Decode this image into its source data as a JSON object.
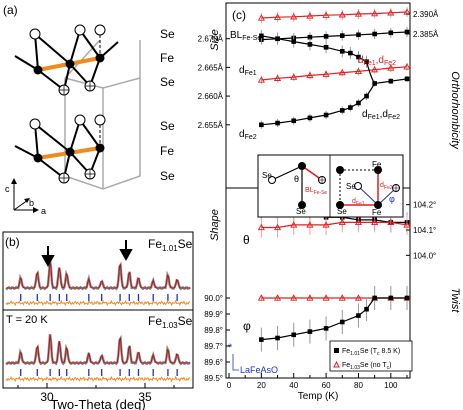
{
  "panel_a": {
    "label": "(a)",
    "layers": [
      "Se",
      "Fe",
      "Se",
      "Se",
      "Fe",
      "Se"
    ],
    "axes": [
      "c",
      "b",
      "a"
    ]
  },
  "panel_b": {
    "label": "(b)",
    "sample_top": "Fe",
    "sample_top_sub": "1.01",
    "sample_top_tail": "Se",
    "sample_bottom": "Fe",
    "sample_bottom_sub": "1.03",
    "sample_bottom_tail": "Se",
    "temperature": "T = 20 K",
    "ticks": [
      "30",
      "35"
    ],
    "xlabel": "Two-Theta (deg)"
  },
  "panel_c": {
    "label": "(c)",
    "size_label": "Size",
    "orthorhombicity_label": "Orthorhombicity",
    "shape_label": "Shape",
    "twist_label": "Twist",
    "xlabel": "Temp (K)",
    "x_ticks": [
      "0",
      "10",
      "20",
      "30",
      "40",
      "50",
      "60",
      "70",
      "80",
      "90",
      "100",
      "110"
    ],
    "size_left_ticks": [
      "2.655Å",
      "2.660Å",
      "2.665Å",
      "2.670Å"
    ],
    "size_right_ticks": [
      "2.385Å",
      "2.390Å"
    ],
    "shape_right_ticks": [
      "104.0°",
      "104.1°",
      "104.2°"
    ],
    "twist_left_ticks": [
      "89.5°",
      "89.6°",
      "89.7°",
      "89.8°",
      "89.9°",
      "90.0°"
    ],
    "labels": {
      "bl": "BL",
      "bl_sub": "Fe-Se",
      "dfe1": "d",
      "dfe1_sub": "Fe1",
      "dfe2": "d",
      "dfe2_sub": "Fe2",
      "dfe_avg_a": "d",
      "dfe_avg_a_sub": "Fe1",
      "dfe_avg_mid": ",d",
      "dfe_avg_b_sub": "Fe2",
      "dfe_red_a": "d",
      "dfe_red_a_sub": "Fe1",
      "dfe_red_mid": ",d",
      "dfe_red_b_sub": "Fe2",
      "theta": "θ",
      "phi": "φ",
      "lafeaso": "LaFeAsO"
    },
    "inset": {
      "se": "Se",
      "fe": "Fe",
      "theta": "θ",
      "bl": "BL",
      "bl_sub": "Fe-Se",
      "dfe2": "d",
      "dfe2_sub": "Fe2",
      "dfe1": "d",
      "dfe1_sub": "Fe1",
      "phi": "φ"
    },
    "legend": [
      {
        "pre": "Fe",
        "sub": "1.01",
        "post": "Se (T",
        "sub2": "c",
        "post2": " 8.5 K)"
      },
      {
        "pre": "Fe",
        "sub": "1.03",
        "post": "Se (no T",
        "sub2": "c",
        "post2": ")"
      }
    ],
    "colors": {
      "black_series": "#000000",
      "red_series": "#e02020",
      "lafeaso": "#2030c0"
    }
  },
  "chart_data": [
    {
      "type": "scatter",
      "title": "Size",
      "xlabel": "Temp (K)",
      "ylabel": "Size",
      "xlim": [
        0,
        110
      ],
      "ylim": [
        2.652,
        2.675
      ],
      "series": [
        {
          "name": "BL Fe-Se",
          "x": [
            20,
            30,
            40,
            50,
            60,
            70,
            80,
            90,
            100,
            110
          ],
          "y": [
            2.3836,
            2.3838,
            2.384,
            2.3842,
            2.3844,
            2.3846,
            2.3848,
            2.385,
            2.3853,
            2.3855
          ]
        },
        {
          "name": "d Fe1",
          "x": [
            20,
            30,
            40,
            50,
            60,
            70,
            75,
            80,
            85
          ],
          "y": [
            2.6705,
            2.67,
            2.6695,
            2.669,
            2.6685,
            2.6678,
            2.6675,
            2.6668,
            2.666
          ]
        },
        {
          "name": "d Fe2",
          "x": [
            20,
            30,
            40,
            50,
            60,
            70,
            75,
            80,
            85
          ],
          "y": [
            2.655,
            2.6553,
            2.6557,
            2.6562,
            2.6567,
            2.6575,
            2.658,
            2.6588,
            2.66
          ]
        },
        {
          "name": "d Fe1, d Fe2",
          "x": [
            90,
            100,
            110
          ],
          "y": [
            2.6622,
            2.6626,
            2.663
          ]
        },
        {
          "name": "d Fe1, d Fe2 (red)",
          "x": [
            20,
            30,
            40,
            50,
            60,
            70,
            80,
            90,
            100,
            110
          ],
          "y": [
            2.6628,
            2.6631,
            2.6633,
            2.6636,
            2.6638,
            2.6641,
            2.6643,
            2.6646,
            2.6649,
            2.6651
          ]
        }
      ]
    },
    {
      "type": "scatter",
      "title": "Shape",
      "xlabel": "Temp (K)",
      "ylabel": "θ",
      "xlim": [
        0,
        110
      ],
      "ylim": [
        103.95,
        104.25
      ],
      "series": [
        {
          "name": "θ Fe1.01Se",
          "x": [
            20,
            30,
            40,
            50,
            60,
            70,
            80,
            90,
            100,
            110
          ],
          "y": [
            104.18,
            104.17,
            104.16,
            104.16,
            104.15,
            104.15,
            104.14,
            104.14,
            104.13,
            104.13
          ]
        },
        {
          "name": "θ Fe1.03Se",
          "x": [
            20,
            30,
            40,
            50,
            60,
            70,
            80,
            90,
            100,
            110
          ],
          "y": [
            104.11,
            104.11,
            104.12,
            104.12,
            104.12,
            104.13,
            104.13,
            104.13,
            104.13,
            104.12
          ]
        }
      ]
    },
    {
      "type": "scatter",
      "title": "Twist",
      "xlabel": "Temp (K)",
      "ylabel": "φ",
      "xlim": [
        0,
        110
      ],
      "ylim": [
        89.5,
        90.1
      ],
      "series": [
        {
          "name": "Fe1.01Se (Tc 8.5 K)",
          "x": [
            20,
            30,
            40,
            50,
            60,
            70,
            80,
            85,
            90,
            100,
            110
          ],
          "y": [
            89.74,
            89.75,
            89.77,
            89.79,
            89.81,
            89.85,
            89.89,
            89.93,
            90.0,
            90.0,
            90.0
          ]
        },
        {
          "name": "Fe1.03Se (no Tc)",
          "x": [
            20,
            30,
            40,
            50,
            60,
            70,
            80,
            90,
            100,
            110
          ],
          "y": [
            90.0,
            90.0,
            90.0,
            90.0,
            90.0,
            90.0,
            90.0,
            90.0,
            90.0,
            90.0
          ]
        },
        {
          "name": "LaFeAsO",
          "x": [
            5
          ],
          "y": [
            89.63
          ]
        }
      ]
    }
  ]
}
